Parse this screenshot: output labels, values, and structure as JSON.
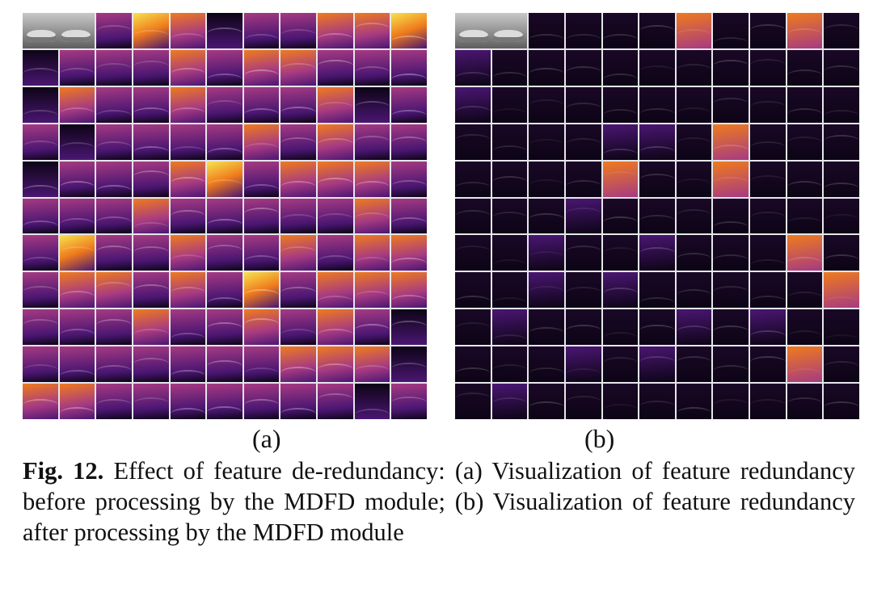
{
  "panels": [
    {
      "id": "a",
      "label": "(a)",
      "variant": "before",
      "rows": 11,
      "cols": 11
    },
    {
      "id": "b",
      "label": "(b)",
      "variant": "after",
      "rows": 11,
      "cols": 11
    }
  ],
  "caption": {
    "fig_number": "Fig. 12.",
    "text": "Effect of feature de-redundancy: (a) Visualization of feature redundancy before processing by the MDFD module; (b) Visualization of feature redundancy after processing by the MDFD module"
  },
  "colors": {
    "inferno_dark": "#0d0416",
    "inferno_purple": "#4a1672",
    "inferno_magenta": "#a63a82",
    "inferno_orange": "#ef7b1d",
    "inferno_yellow": "#f6e44d"
  }
}
